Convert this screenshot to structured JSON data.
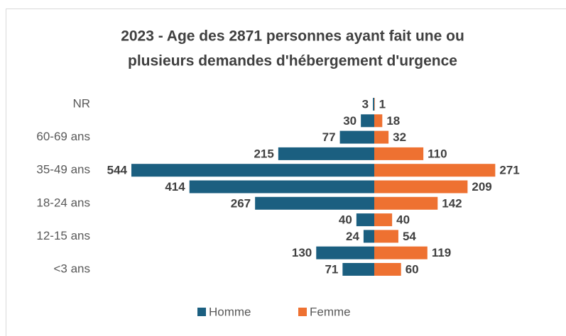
{
  "chart_data": {
    "type": "pyramid",
    "title": [
      "2023 - Age des 2871 personnes ayant fait une ou",
      "plusieurs demandes d'hébergement d'urgence"
    ],
    "categories": [
      "NR",
      null,
      "60-69 ans",
      null,
      "35-49 ans",
      null,
      "18-24 ans",
      null,
      "12-15 ans",
      null,
      "<3 ans"
    ],
    "series": [
      {
        "name": "Homme",
        "color": "#1b5f80",
        "values": [
          3,
          30,
          77,
          215,
          544,
          414,
          267,
          40,
          24,
          130,
          71
        ]
      },
      {
        "name": "Femme",
        "color": "#ee7131",
        "values": [
          1,
          18,
          32,
          110,
          271,
          209,
          142,
          40,
          54,
          119,
          60
        ]
      }
    ],
    "legend": "bottom"
  }
}
